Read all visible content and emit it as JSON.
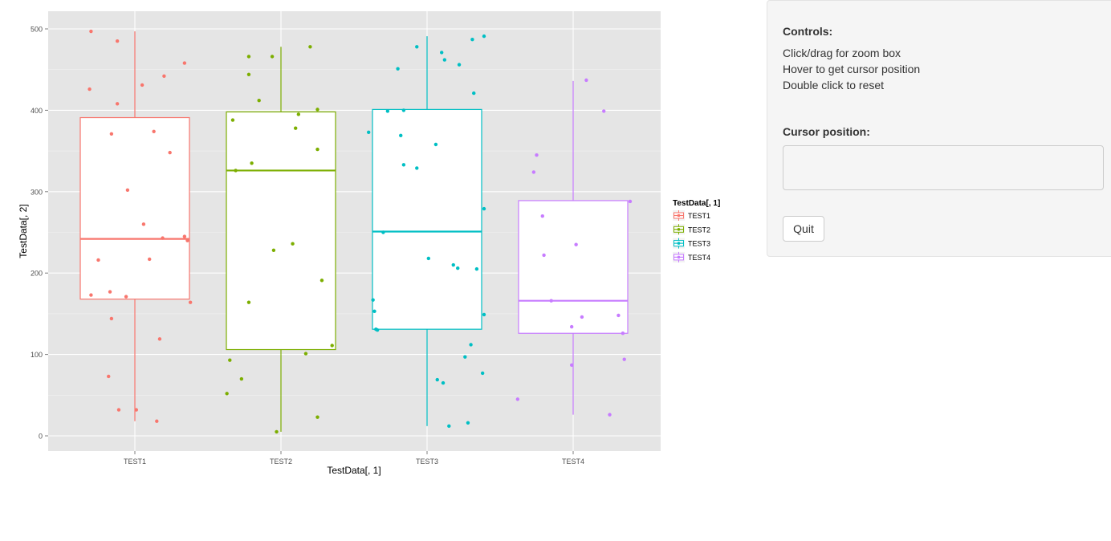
{
  "chart_data": {
    "type": "boxplot",
    "xlabel": "TestData[, 1]",
    "ylabel": "TestData[, 2]",
    "ylim": [
      -20,
      520
    ],
    "yticks": [
      0,
      100,
      200,
      300,
      400,
      500
    ],
    "categories": [
      "TEST1",
      "TEST2",
      "TEST3",
      "TEST4"
    ],
    "legend": {
      "title": "TestData[, 1]",
      "position": "right"
    },
    "grid": true,
    "colors": [
      "#f8766d",
      "#7cae00",
      "#00bfc4",
      "#c77cff"
    ],
    "boxes": [
      {
        "name": "TEST1",
        "whisker_low": 18,
        "q1": 168,
        "median": 242,
        "q3": 391,
        "whisker_high": 497
      },
      {
        "name": "TEST2",
        "whisker_low": 5,
        "q1": 106,
        "median": 326,
        "q3": 398,
        "whisker_high": 478
      },
      {
        "name": "TEST3",
        "whisker_low": 12,
        "q1": 131,
        "median": 251,
        "q3": 401,
        "whisker_high": 491
      },
      {
        "name": "TEST4",
        "whisker_low": 26,
        "q1": 126,
        "median": 166,
        "q3": 289,
        "whisker_high": 436
      }
    ],
    "points": [
      {
        "category": "TEST1",
        "values": [
          {
            "dx": -0.31,
            "y": 426
          },
          {
            "dx": -0.3,
            "y": 497
          },
          {
            "dx": -0.12,
            "y": 485
          },
          {
            "dx": -0.12,
            "y": 408
          },
          {
            "dx": 0.05,
            "y": 431
          },
          {
            "dx": 0.2,
            "y": 442
          },
          {
            "dx": 0.34,
            "y": 458
          },
          {
            "dx": -0.16,
            "y": 371
          },
          {
            "dx": 0.13,
            "y": 374
          },
          {
            "dx": 0.24,
            "y": 348
          },
          {
            "dx": -0.05,
            "y": 302
          },
          {
            "dx": 0.06,
            "y": 260
          },
          {
            "dx": 0.19,
            "y": 243
          },
          {
            "dx": 0.34,
            "y": 245
          },
          {
            "dx": 0.36,
            "y": 240
          },
          {
            "dx": -0.25,
            "y": 216
          },
          {
            "dx": 0.1,
            "y": 217
          },
          {
            "dx": -0.3,
            "y": 173
          },
          {
            "dx": -0.17,
            "y": 177
          },
          {
            "dx": -0.06,
            "y": 171
          },
          {
            "dx": 0.38,
            "y": 164
          },
          {
            "dx": -0.16,
            "y": 144
          },
          {
            "dx": 0.17,
            "y": 119
          },
          {
            "dx": -0.18,
            "y": 73
          },
          {
            "dx": -0.11,
            "y": 32
          },
          {
            "dx": 0.01,
            "y": 32
          },
          {
            "dx": 0.15,
            "y": 18
          }
        ]
      },
      {
        "category": "TEST2",
        "values": [
          {
            "dx": -0.22,
            "y": 466
          },
          {
            "dx": -0.06,
            "y": 466
          },
          {
            "dx": 0.2,
            "y": 478
          },
          {
            "dx": -0.22,
            "y": 444
          },
          {
            "dx": -0.15,
            "y": 412
          },
          {
            "dx": 0.12,
            "y": 395
          },
          {
            "dx": -0.33,
            "y": 388
          },
          {
            "dx": 0.25,
            "y": 401
          },
          {
            "dx": 0.1,
            "y": 378
          },
          {
            "dx": 0.25,
            "y": 352
          },
          {
            "dx": -0.2,
            "y": 335
          },
          {
            "dx": -0.31,
            "y": 326
          },
          {
            "dx": 0.08,
            "y": 236
          },
          {
            "dx": -0.05,
            "y": 228
          },
          {
            "dx": 0.28,
            "y": 191
          },
          {
            "dx": -0.22,
            "y": 164
          },
          {
            "dx": 0.35,
            "y": 111
          },
          {
            "dx": 0.17,
            "y": 101
          },
          {
            "dx": -0.35,
            "y": 93
          },
          {
            "dx": -0.27,
            "y": 70
          },
          {
            "dx": -0.37,
            "y": 52
          },
          {
            "dx": 0.25,
            "y": 23
          },
          {
            "dx": -0.03,
            "y": 5
          }
        ]
      },
      {
        "category": "TEST3",
        "values": [
          {
            "dx": 0.39,
            "y": 491
          },
          {
            "dx": 0.31,
            "y": 487
          },
          {
            "dx": -0.07,
            "y": 478
          },
          {
            "dx": 0.1,
            "y": 471
          },
          {
            "dx": 0.12,
            "y": 462
          },
          {
            "dx": 0.22,
            "y": 456
          },
          {
            "dx": -0.2,
            "y": 451
          },
          {
            "dx": 0.32,
            "y": 421
          },
          {
            "dx": -0.27,
            "y": 399
          },
          {
            "dx": -0.16,
            "y": 400
          },
          {
            "dx": -0.4,
            "y": 373
          },
          {
            "dx": -0.18,
            "y": 369
          },
          {
            "dx": 0.06,
            "y": 358
          },
          {
            "dx": -0.16,
            "y": 333
          },
          {
            "dx": -0.07,
            "y": 329
          },
          {
            "dx": 0.39,
            "y": 279
          },
          {
            "dx": -0.3,
            "y": 250
          },
          {
            "dx": 0.01,
            "y": 218
          },
          {
            "dx": 0.18,
            "y": 210
          },
          {
            "dx": 0.21,
            "y": 206
          },
          {
            "dx": 0.34,
            "y": 205
          },
          {
            "dx": -0.37,
            "y": 167
          },
          {
            "dx": -0.36,
            "y": 153
          },
          {
            "dx": 0.39,
            "y": 149
          },
          {
            "dx": -0.35,
            "y": 131
          },
          {
            "dx": -0.34,
            "y": 130
          },
          {
            "dx": 0.3,
            "y": 112
          },
          {
            "dx": 0.26,
            "y": 97
          },
          {
            "dx": 0.38,
            "y": 77
          },
          {
            "dx": 0.07,
            "y": 69
          },
          {
            "dx": 0.11,
            "y": 65
          },
          {
            "dx": 0.28,
            "y": 16
          },
          {
            "dx": 0.15,
            "y": 12
          }
        ]
      },
      {
        "category": "TEST4",
        "values": [
          {
            "dx": 0.09,
            "y": 437
          },
          {
            "dx": 0.21,
            "y": 399
          },
          {
            "dx": -0.25,
            "y": 345
          },
          {
            "dx": -0.27,
            "y": 324
          },
          {
            "dx": 0.39,
            "y": 288
          },
          {
            "dx": -0.21,
            "y": 270
          },
          {
            "dx": 0.02,
            "y": 235
          },
          {
            "dx": -0.2,
            "y": 222
          },
          {
            "dx": -0.15,
            "y": 166
          },
          {
            "dx": 0.31,
            "y": 148
          },
          {
            "dx": 0.06,
            "y": 146
          },
          {
            "dx": -0.01,
            "y": 134
          },
          {
            "dx": 0.34,
            "y": 126
          },
          {
            "dx": 0.35,
            "y": 94
          },
          {
            "dx": -0.01,
            "y": 87
          },
          {
            "dx": -0.38,
            "y": 45
          },
          {
            "dx": 0.25,
            "y": 26
          }
        ]
      }
    ]
  },
  "controls": {
    "title": "Controls:",
    "lines": [
      "Click/drag for zoom box",
      "Hover to get cursor position",
      "Double click to reset"
    ],
    "cursor_title": "Cursor position:",
    "cursor_value": "",
    "quit_label": "Quit"
  }
}
